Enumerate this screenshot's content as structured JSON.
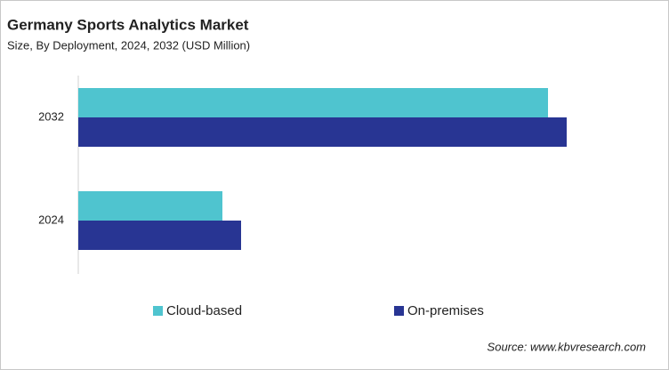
{
  "chart_data": {
    "type": "hbar",
    "title": "Germany Sports Analytics Market",
    "subtitle": "Size, By Deployment, 2024, 2032 (USD Million)",
    "categories": [
      "2032",
      "2024"
    ],
    "series": [
      {
        "name": "Cloud-based",
        "color": "#4fc4cf",
        "values": [
          528,
          162
        ]
      },
      {
        "name": "On-premises",
        "color": "#283593",
        "values": [
          549,
          183
        ]
      }
    ],
    "xlim": [
      0,
      600
    ],
    "source": "Source: www.kbvresearch.com"
  }
}
